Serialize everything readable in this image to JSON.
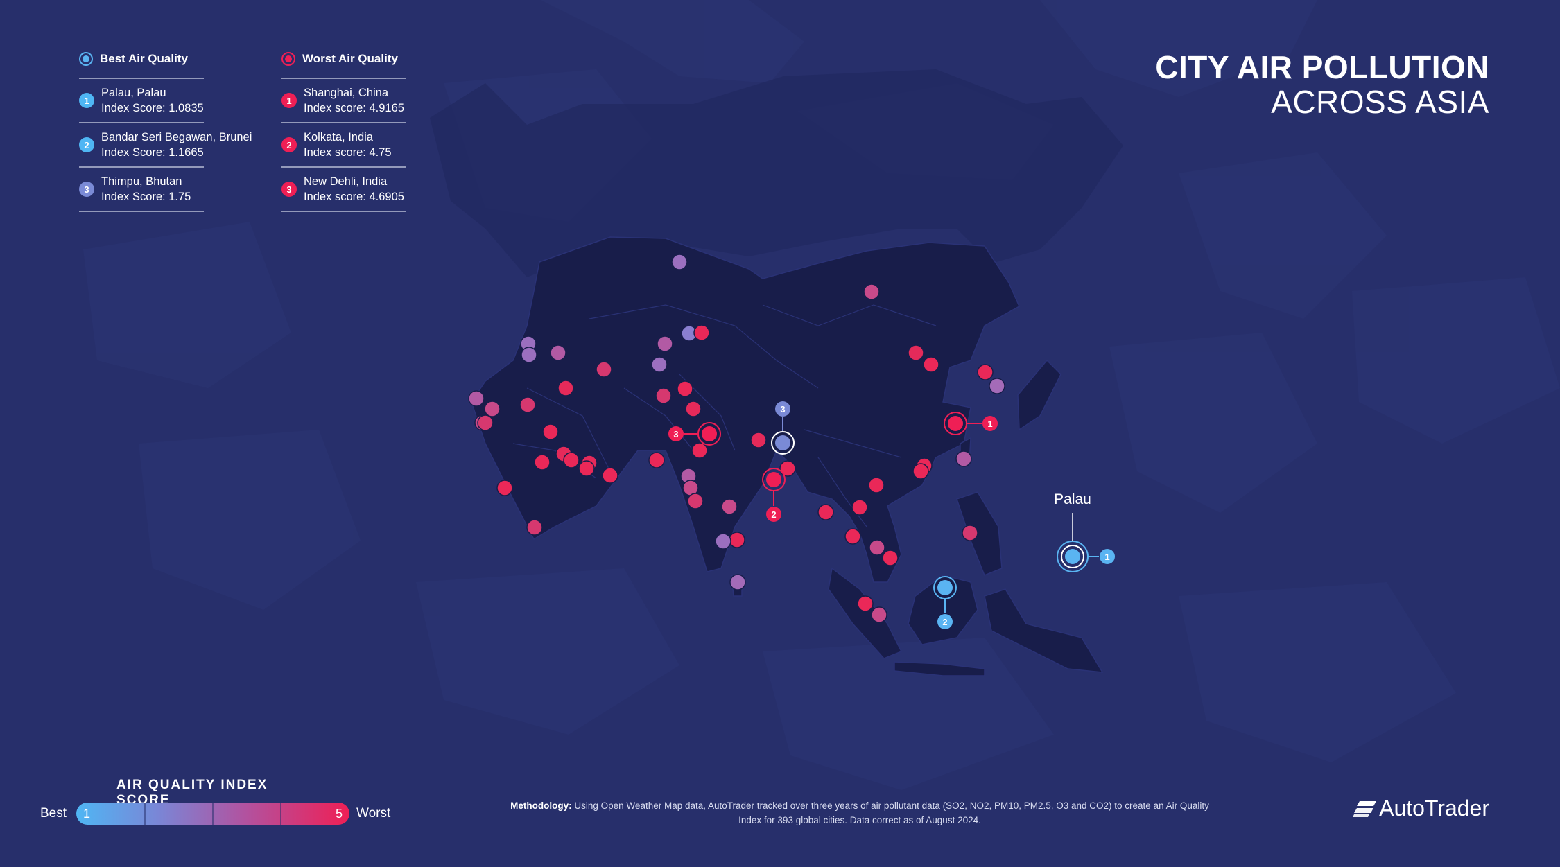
{
  "title": {
    "line1": "CITY AIR POLLUTION",
    "line2": "ACROSS ASIA"
  },
  "legend": {
    "best": {
      "heading": "Best Air Quality",
      "items": [
        {
          "rank": "1",
          "city": "Palau, Palau",
          "score": "Index Score: 1.0835"
        },
        {
          "rank": "2",
          "city": "Bandar Seri Begawan, Brunei",
          "score": "Index Score: 1.1665"
        },
        {
          "rank": "3",
          "city": "Thimpu, Bhutan",
          "score": "Index Score: 1.75"
        }
      ]
    },
    "worst": {
      "heading": "Worst Air Quality",
      "items": [
        {
          "rank": "1",
          "city": "Shanghai, China",
          "score": "Index score: 4.9165"
        },
        {
          "rank": "2",
          "city": "Kolkata, India",
          "score": "Index score: 4.75"
        },
        {
          "rank": "3",
          "city": "New Dehli, India",
          "score": "Index score: 4.6905"
        }
      ]
    }
  },
  "scale": {
    "title": "AIR QUALITY INDEX SCORE",
    "best_label": "Best",
    "worst_label": "Worst",
    "min": "1",
    "max": "5"
  },
  "map": {
    "callout_label": "Palau",
    "highlighted": [
      {
        "id": "palau",
        "rank": "1",
        "group": "best",
        "score": 1.0835
      },
      {
        "id": "bandar-seri-begawan",
        "rank": "2",
        "group": "best",
        "score": 1.1665
      },
      {
        "id": "thimpu",
        "rank": "3",
        "group": "best",
        "score": 1.75
      },
      {
        "id": "shanghai",
        "rank": "1",
        "group": "worst",
        "score": 4.9165
      },
      {
        "id": "kolkata",
        "rank": "2",
        "group": "worst",
        "score": 4.75
      },
      {
        "id": "new-dehli",
        "rank": "3",
        "group": "worst",
        "score": 4.6905
      }
    ]
  },
  "methodology": {
    "label": "Methodology:",
    "text": "Using Open Weather Map data, AutoTrader tracked over three years of air pollutant data (SO2, NO2, PM10, PM2.5, O3 and CO2) to create an Air Quality Index  for 393 global cities. Data correct as of August 2024."
  },
  "brand": {
    "name": "AutoTrader"
  },
  "colors": {
    "best": "#5ab4f2",
    "mid": "#8a7fd0",
    "worst": "#ef1f55",
    "land": "#181d4a",
    "sea": "#272f6b"
  }
}
